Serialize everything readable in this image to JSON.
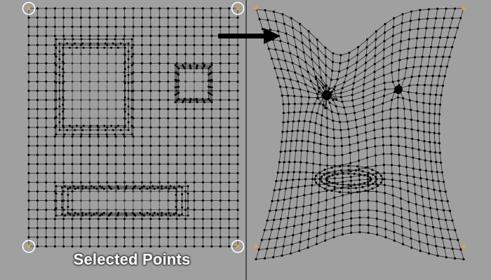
{
  "caption": "Selected Points",
  "colors": {
    "background": "#a0a0a0",
    "grid_line": "#222222",
    "vertex": "#000000",
    "corner_vertex": "#e8a23a",
    "selection_ring": "#ffffff",
    "divider": "#1a1a1a",
    "arrow": "#000000",
    "caption_text": "#ffffff"
  },
  "left_panel": {
    "grid_cols": 25,
    "grid_rows": 27,
    "cutouts": [
      "large-square",
      "small-square",
      "wide-bar"
    ],
    "selected_corners": [
      "top-left",
      "top-right",
      "bottom-left",
      "bottom-right"
    ]
  },
  "right_panel": {
    "grid_cols": 25,
    "grid_rows": 27,
    "features": [
      "left-eye-vortex",
      "right-eye-vortex",
      "mouth-ellipse"
    ],
    "corner_markers": [
      "top-left",
      "top-right",
      "bottom-left",
      "bottom-right"
    ]
  },
  "arrow": {
    "direction": "right"
  }
}
